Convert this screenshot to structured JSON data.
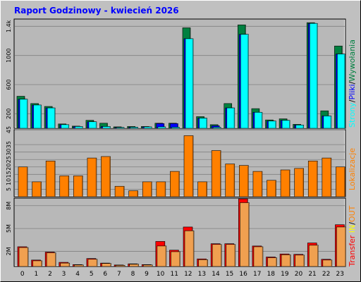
{
  "title": "Raport Godzinowy -  kwiecień 2026",
  "colors": {
    "background": "#c0c0c0",
    "plot_bg": "#b8b8b8",
    "title": "#0000ff",
    "strony": "#00ffff",
    "pliki": "#0000ff",
    "wywolania": "#008040",
    "lokalizacje": "#ff8000",
    "transfer": "#ff0000",
    "in": "#ffff00",
    "out": "#ff8000"
  },
  "legend": {
    "top": {
      "strony": "Strony",
      "sep1": "/",
      "pliki": "Pliki",
      "sep2": "/",
      "wywolania": "Wywołania"
    },
    "middle": {
      "lokalizacje": "Lokalizacje"
    },
    "bottom": {
      "transfer": "Transfer",
      "in": "IN",
      "sep": "/",
      "out": "OUT"
    }
  },
  "chart_data": [
    {
      "type": "bar",
      "title": "Raport Godzinowy -  kwiecień 2026",
      "categories": [
        "0",
        "1",
        "2",
        "3",
        "4",
        "5",
        "6",
        "7",
        "8",
        "9",
        "10",
        "11",
        "12",
        "13",
        "14",
        "15",
        "16",
        "17",
        "18",
        "19",
        "20",
        "21",
        "22",
        "23"
      ],
      "yticks": [
        "200",
        "600",
        "1000",
        "1.4k"
      ],
      "ylim": [
        0,
        1500
      ],
      "series": [
        {
          "name": "Wywołania",
          "values": [
            440,
            340,
            300,
            60,
            30,
            110,
            70,
            20,
            25,
            25,
            70,
            70,
            1380,
            160,
            50,
            340,
            1420,
            270,
            115,
            130,
            55,
            1450,
            240,
            1130
          ]
        },
        {
          "name": "Pliki",
          "values": [
            400,
            320,
            280,
            50,
            25,
            90,
            25,
            12,
            15,
            20,
            65,
            65,
            1230,
            140,
            35,
            280,
            1290,
            220,
            100,
            110,
            45,
            1440,
            170,
            1020
          ]
        },
        {
          "name": "Strony",
          "values": [
            400,
            320,
            280,
            50,
            25,
            90,
            25,
            12,
            15,
            20,
            20,
            15,
            1230,
            140,
            15,
            280,
            1290,
            220,
            100,
            110,
            45,
            1440,
            170,
            1020
          ]
        }
      ]
    },
    {
      "type": "bar",
      "categories": [
        "0",
        "1",
        "2",
        "3",
        "4",
        "5",
        "6",
        "7",
        "8",
        "9",
        "10",
        "11",
        "12",
        "13",
        "14",
        "15",
        "16",
        "17",
        "18",
        "19",
        "20",
        "21",
        "22",
        "23"
      ],
      "yticks": [
        "5",
        "10",
        "15",
        "20",
        "25",
        "30",
        "35",
        "45"
      ],
      "ylim": [
        0,
        45
      ],
      "series": [
        {
          "name": "Lokalizacje",
          "values": [
            20,
            10,
            24,
            14,
            14,
            26,
            27,
            7,
            4,
            10,
            10,
            17,
            41,
            10,
            31,
            22,
            21,
            17,
            11,
            18,
            19,
            24,
            26,
            20
          ]
        }
      ]
    },
    {
      "type": "bar",
      "categories": [
        "0",
        "1",
        "2",
        "3",
        "4",
        "5",
        "6",
        "7",
        "8",
        "9",
        "10",
        "11",
        "12",
        "13",
        "14",
        "15",
        "16",
        "17",
        "18",
        "19",
        "20",
        "21",
        "22",
        "23"
      ],
      "yticks": [
        "2M",
        "5M",
        "8M"
      ],
      "ylim": [
        0,
        9000000
      ],
      "series": [
        {
          "name": "IN",
          "values": [
            2600000,
            850000,
            1900000,
            550000,
            250000,
            1050000,
            450000,
            200000,
            350000,
            250000,
            3300000,
            2150000,
            5200000,
            1000000,
            3000000,
            3000000,
            8900000,
            2700000,
            1250000,
            1650000,
            1600000,
            3100000,
            950000,
            5500000
          ]
        },
        {
          "name": "OUT",
          "values": [
            2500000,
            750000,
            1800000,
            450000,
            200000,
            950000,
            400000,
            150000,
            300000,
            200000,
            2700000,
            1950000,
            4700000,
            900000,
            2900000,
            2900000,
            8400000,
            2600000,
            1150000,
            1550000,
            1500000,
            2800000,
            850000,
            5200000
          ]
        }
      ]
    }
  ]
}
